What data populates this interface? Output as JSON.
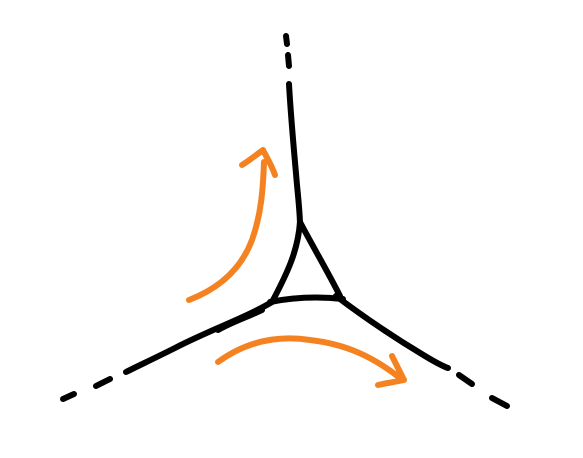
{
  "diagram": {
    "description_visible_text": "",
    "colors": {
      "background": "#ffffff",
      "black_stroke": "#000000",
      "orange_stroke": "#f58220"
    },
    "icons": [
      "curved-arrow-up-icon",
      "curved-arrow-right-icon"
    ]
  }
}
